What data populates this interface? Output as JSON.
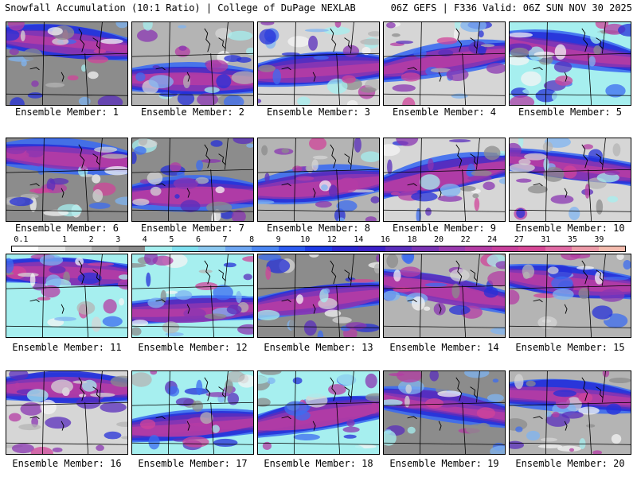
{
  "header": {
    "left": "Snowfall Accumulation (10:1 Ratio) | College of DuPage NEXLAB",
    "right": "06Z GEFS | F336 Valid: 06Z SUN NOV 30 2025"
  },
  "label_prefix": "Ensemble Member: ",
  "members": [
    "1",
    "2",
    "3",
    "4",
    "5",
    "6",
    "7",
    "8",
    "9",
    "10",
    "11",
    "12",
    "13",
    "14",
    "15",
    "16",
    "17",
    "18",
    "19",
    "20"
  ],
  "colorbar": {
    "ticks": [
      "0.1",
      "1",
      "2",
      "3",
      "4",
      "5",
      "6",
      "7",
      "8",
      "9",
      "10",
      "12",
      "14",
      "16",
      "18",
      "20",
      "22",
      "24",
      "27",
      "31",
      "35",
      "39"
    ],
    "colors": [
      "#ffffff",
      "#e6e6e6",
      "#c8c8c8",
      "#a8a8a8",
      "#8c8c8c",
      "#a6efef",
      "#7fe0f0",
      "#8cc8f0",
      "#6ea6f2",
      "#4b86f2",
      "#2d5cf0",
      "#1f3ce6",
      "#2a26d2",
      "#3c20c8",
      "#5a2ebc",
      "#7a34b4",
      "#9a3aae",
      "#b43ca4",
      "#c8409c",
      "#d64896",
      "#e06aa4",
      "#ec9aa8",
      "#f4bcae"
    ]
  },
  "icons": {
    "map": "snowfall-map-panel"
  }
}
